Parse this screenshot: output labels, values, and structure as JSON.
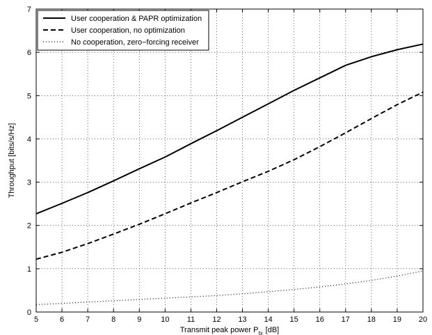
{
  "chart_data": {
    "type": "line",
    "xlabel": "Transmit peak power P",
    "xlabel_subscript": "tx",
    "xlabel_unit": "[dB]",
    "ylabel": "Throughput [bits/s/Hz]",
    "xlim": [
      5,
      20
    ],
    "ylim": [
      0,
      7
    ],
    "x_ticks": [
      5,
      6,
      7,
      8,
      9,
      10,
      11,
      12,
      13,
      14,
      15,
      16,
      17,
      18,
      19,
      20
    ],
    "y_ticks": [
      0,
      1,
      2,
      3,
      4,
      5,
      6,
      7
    ],
    "grid": true,
    "grid_style": "dotted",
    "legend_position": "top-left",
    "x": [
      5,
      6,
      7,
      8,
      9,
      10,
      11,
      12,
      13,
      14,
      15,
      16,
      17,
      18,
      19,
      20
    ],
    "series": [
      {
        "name": "User cooperation & PAPR optimization",
        "line_style": "solid",
        "color": "#000000",
        "values": [
          2.27,
          2.51,
          2.76,
          3.03,
          3.31,
          3.58,
          3.89,
          4.19,
          4.5,
          4.81,
          5.12,
          5.41,
          5.7,
          5.9,
          6.06,
          6.19
        ]
      },
      {
        "name": "User cooperation, no optimization",
        "line_style": "dashed",
        "color": "#000000",
        "values": [
          1.22,
          1.38,
          1.58,
          1.8,
          2.03,
          2.27,
          2.52,
          2.76,
          3.01,
          3.25,
          3.52,
          3.82,
          4.14,
          4.47,
          4.79,
          5.08
        ]
      },
      {
        "name": "No cooperation, zero−forcing receiver",
        "line_style": "dotted",
        "color": "#000000",
        "values": [
          0.17,
          0.2,
          0.23,
          0.26,
          0.29,
          0.32,
          0.35,
          0.38,
          0.42,
          0.47,
          0.52,
          0.58,
          0.65,
          0.73,
          0.83,
          0.95
        ]
      }
    ]
  }
}
